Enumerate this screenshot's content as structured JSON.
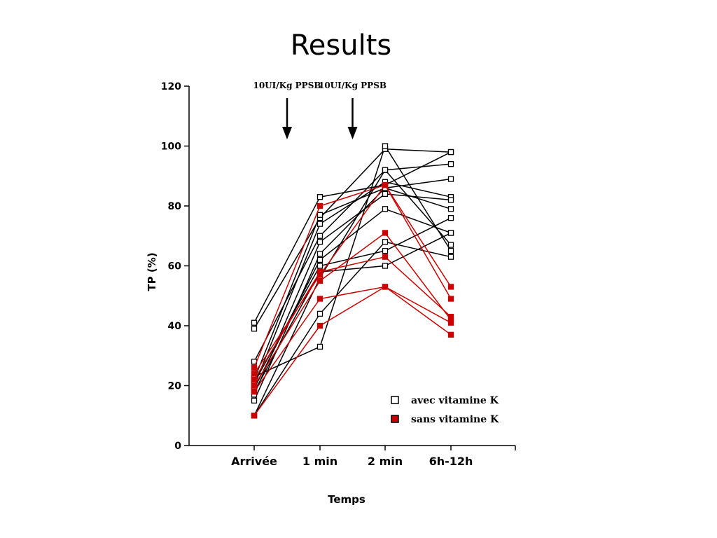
{
  "slide": {
    "title": "Results"
  },
  "chart_data": {
    "type": "line",
    "xlabel": "Temps",
    "ylabel": "TP (%)",
    "categories": [
      "Arrivée",
      "1 min",
      "2 min",
      "6h-12h"
    ],
    "ylim": [
      0,
      120
    ],
    "yticks": [
      0,
      20,
      40,
      60,
      80,
      100,
      120
    ],
    "grid": false,
    "legend_position": "bottom-right",
    "annotations": [
      {
        "text": "10UI/Kg PPSB",
        "between": [
          0,
          1
        ]
      },
      {
        "text": "10UI/Kg PPSB",
        "between": [
          1,
          2
        ]
      }
    ],
    "series": [
      {
        "name": "avec vitamine K",
        "color": "#000000",
        "fill": "#ffffff",
        "lines": [
          [
            41,
            83,
            87,
            98
          ],
          [
            39,
            76,
            99,
            98
          ],
          [
            28,
            70,
            92,
            94
          ],
          [
            22,
            77,
            86,
            89
          ],
          [
            20,
            74,
            88,
            83
          ],
          [
            17,
            68,
            84,
            82
          ],
          [
            15,
            64,
            86,
            79
          ],
          [
            21,
            60,
            65,
            76
          ],
          [
            19,
            62,
            79,
            71
          ],
          [
            10,
            56,
            92,
            67
          ],
          [
            10,
            44,
            68,
            63
          ],
          [
            18,
            58,
            60,
            71
          ],
          [
            23,
            33,
            100,
            65
          ]
        ]
      },
      {
        "name": "sans vitamine K",
        "color": "#cc0000",
        "fill": "#cc0000",
        "lines": [
          [
            26,
            80,
            87,
            53
          ],
          [
            24,
            57,
            87,
            49
          ],
          [
            20,
            55,
            71,
            42
          ],
          [
            18,
            49,
            53,
            41
          ],
          [
            10,
            40,
            53,
            37
          ],
          [
            22,
            58,
            63,
            43
          ]
        ]
      }
    ]
  }
}
